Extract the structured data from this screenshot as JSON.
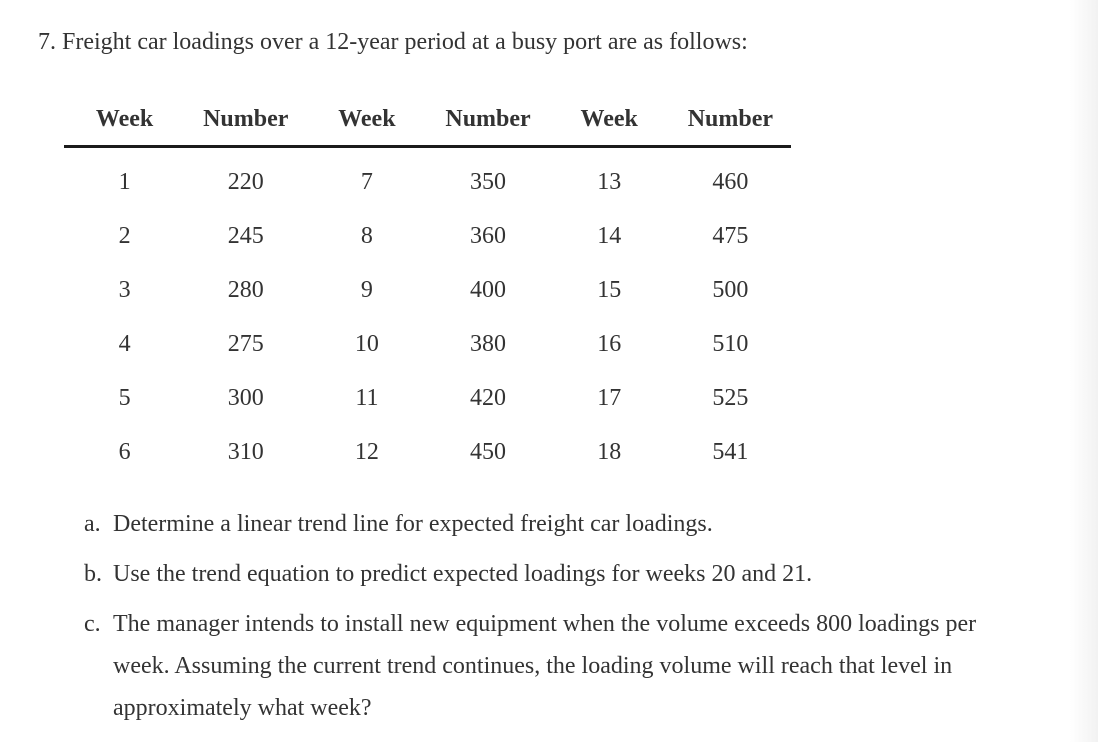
{
  "page": {
    "title": "7. Freight car loadings over a 12-year period at a busy port are as follows:"
  },
  "table": {
    "headers": [
      "Week",
      "Number",
      "Week",
      "Number",
      "Week",
      "Number"
    ],
    "rows": [
      [
        "1",
        "220",
        "7",
        "350",
        "13",
        "460"
      ],
      [
        "2",
        "245",
        "8",
        "360",
        "14",
        "475"
      ],
      [
        "3",
        "280",
        "9",
        "400",
        "15",
        "500"
      ],
      [
        "4",
        "275",
        "10",
        "380",
        "16",
        "510"
      ],
      [
        "5",
        "300",
        "11",
        "420",
        "17",
        "525"
      ],
      [
        "6",
        "310",
        "12",
        "450",
        "18",
        "541"
      ]
    ]
  },
  "questions": [
    {
      "label": "a.",
      "text": "Determine a linear trend line for expected freight car loadings."
    },
    {
      "label": "b.",
      "text": "Use the trend equation to predict expected loadings for weeks 20 and 21."
    },
    {
      "label": "c.",
      "text": "The manager intends to install new equipment when the volume exceeds 800 loadings per week. Assuming the current trend continues, the loading volume will reach that level in approximately what week?"
    }
  ],
  "colors": {
    "text": "#333333",
    "rule": "#1b1b1b",
    "background": "#ffffff"
  }
}
